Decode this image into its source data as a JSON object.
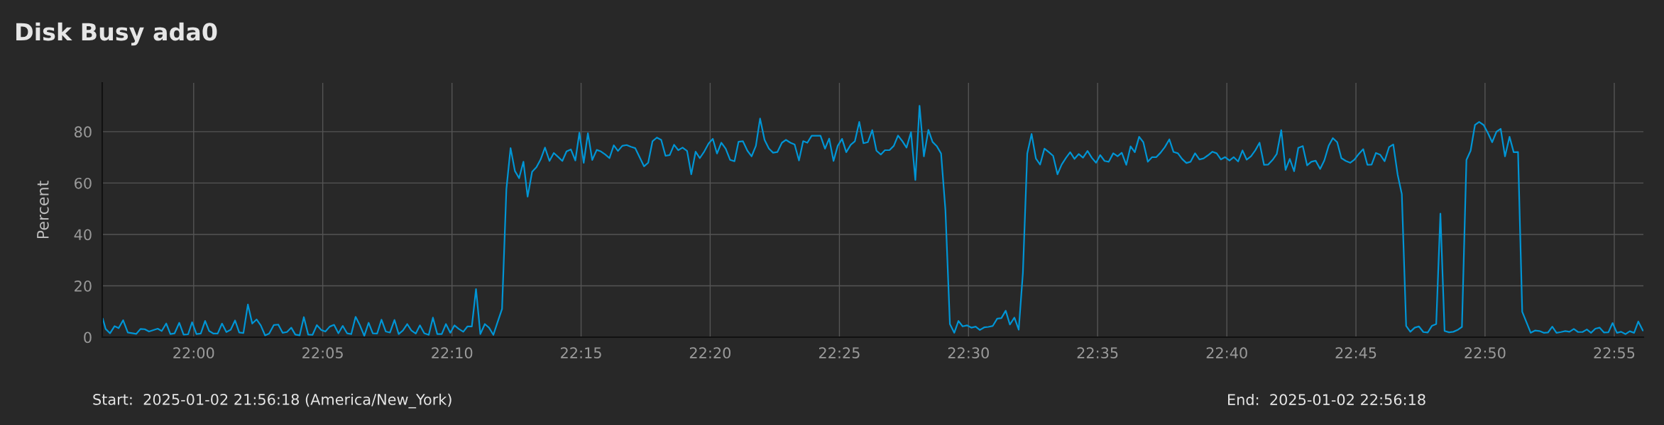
{
  "chart_data": {
    "type": "line",
    "title": "Disk Busy ada0",
    "ylabel": "Percent",
    "annotations": [
      "Start:  2025-01-02 21:56:18 (America/New_York)",
      "End:  2025-01-02 22:56:18"
    ],
    "xlim": [
      21.941,
      22.9355
    ],
    "ylim": [
      0,
      99
    ],
    "xticks": [
      {
        "value": 22.0,
        "label": "22:00"
      },
      {
        "value": 22.0833,
        "label": "22:05"
      },
      {
        "value": 22.1667,
        "label": "22:10"
      },
      {
        "value": 22.25,
        "label": "22:15"
      },
      {
        "value": 22.3333,
        "label": "22:20"
      },
      {
        "value": 22.4167,
        "label": "22:25"
      },
      {
        "value": 22.5,
        "label": "22:30"
      },
      {
        "value": 22.5833,
        "label": "22:35"
      },
      {
        "value": 22.6667,
        "label": "22:40"
      },
      {
        "value": 22.75,
        "label": "22:45"
      },
      {
        "value": 22.8333,
        "label": "22:50"
      },
      {
        "value": 22.9167,
        "label": "22:55"
      }
    ],
    "yticks": [
      0,
      20,
      40,
      60,
      80
    ],
    "grid": true,
    "legend": false,
    "marker": "none",
    "line_style": "solid",
    "series": [
      {
        "color": "#0095d5",
        "x": [
          21.9413,
          21.9432,
          21.946,
          21.949,
          21.9516,
          21.9545,
          21.9575,
          21.963,
          21.9657,
          21.9684,
          21.9712,
          21.9768,
          21.9794,
          21.9823,
          21.985,
          21.9877,
          21.9907,
          21.9935,
          21.9964,
          21.999,
          22.0018,
          22.0046,
          22.0074,
          22.01,
          22.0128,
          22.0155,
          22.0183,
          22.0211,
          22.0239,
          22.0267,
          22.0294,
          22.0321,
          22.035,
          22.0378,
          22.0406,
          22.0433,
          22.0461,
          22.0487,
          22.0517,
          22.0546,
          22.0574,
          22.0602,
          22.063,
          22.0656,
          22.0684,
          22.0711,
          22.0739,
          22.0767,
          22.0795,
          22.0823,
          22.085,
          22.0878,
          22.0906,
          22.0934,
          22.0962,
          22.099,
          22.1017,
          22.1045,
          22.1073,
          22.1101,
          22.1129,
          22.1156,
          22.1184,
          22.1212,
          22.124,
          22.1267,
          22.1296,
          22.1323,
          22.135,
          22.1378,
          22.1405,
          22.1433,
          22.146,
          22.1488,
          22.1517,
          22.1544,
          22.1572,
          22.1601,
          22.1628,
          22.1656,
          22.1683,
          22.1711,
          22.174,
          22.1767,
          22.1795,
          22.1822,
          22.185,
          22.1879,
          22.1906,
          22.1934,
          22.1961,
          22.199,
          22.2018,
          22.2045,
          22.2073,
          22.21,
          22.2128,
          22.2155,
          22.2184,
          22.2212,
          22.2239,
          22.2267,
          22.2296,
          22.2324,
          22.2351,
          22.2379,
          22.2406,
          22.2434,
          22.2463,
          22.2489,
          22.2517,
          22.2544,
          22.2572,
          22.2601,
          22.2628,
          22.2656,
          22.2683,
          22.2711,
          22.2738,
          22.2766,
          22.2794,
          22.2822,
          22.2849,
          22.2906,
          22.2933,
          22.2961,
          22.2989,
          22.3017,
          22.3045,
          22.3072,
          22.31,
          22.3127,
          22.3155,
          22.3184,
          22.3211,
          22.3239,
          22.3266,
          22.3295,
          22.3323,
          22.335,
          22.3377,
          22.3405,
          22.3433,
          22.3462,
          22.349,
          22.3516,
          22.3544,
          22.3573,
          22.36,
          22.3628,
          22.3655,
          22.3684,
          22.3712,
          22.3739,
          22.3767,
          22.3796,
          22.3822,
          22.3851,
          22.3878,
          22.3906,
          22.3933,
          22.396,
          22.3988,
          22.4045,
          22.4074,
          22.4101,
          22.4129,
          22.4156,
          22.4184,
          22.4211,
          22.424,
          22.4267,
          22.4295,
          22.4322,
          22.435,
          22.4379,
          22.4406,
          22.4434,
          22.4461,
          22.449,
          22.4518,
          22.4545,
          22.4572,
          22.46,
          22.4629,
          22.4657,
          22.4684,
          22.4712,
          22.4741,
          22.4768,
          22.4796,
          22.4823,
          22.4851,
          22.488,
          22.4908,
          22.4935,
          22.4962,
          22.499,
          22.5018,
          22.5046,
          22.5073,
          22.5101,
          22.5128,
          22.5157,
          22.5185,
          22.5212,
          22.524,
          22.5267,
          22.5296,
          22.5324,
          22.5351,
          22.5379,
          22.5407,
          22.5435,
          22.5462,
          22.549,
          22.5519,
          22.5546,
          22.5574,
          22.5601,
          22.5629,
          22.5656,
          22.5684,
          22.5711,
          22.5739,
          22.5768,
          22.5796,
          22.5823,
          22.585,
          22.5878,
          22.5905,
          22.5934,
          22.5962,
          22.5989,
          22.6018,
          22.6046,
          22.6073,
          22.6101,
          22.6128,
          22.6157,
          22.6185,
          22.6212,
          22.6239,
          22.6267,
          22.6296,
          22.6323,
          22.6351,
          22.6378,
          22.6406,
          22.6433,
          22.6462,
          22.649,
          22.6517,
          22.6545,
          22.6574,
          22.6601,
          22.6629,
          22.6656,
          22.6684,
          22.6711,
          22.674,
          22.6768,
          22.6795,
          22.6823,
          22.685,
          22.6878,
          22.6907,
          22.6934,
          22.6962,
          22.6989,
          22.7018,
          22.7046,
          22.7073,
          22.7101,
          22.7128,
          22.7157,
          22.7185,
          22.7212,
          22.724,
          22.7269,
          22.7296,
          22.7324,
          22.7351,
          22.7379,
          22.7406,
          22.7435,
          22.7463,
          22.749,
          22.7518,
          22.7547,
          22.7574,
          22.7601,
          22.7629,
          22.7657,
          22.7685,
          22.7714,
          22.7741,
          22.7769,
          22.7796,
          22.7824,
          22.7851,
          22.7879,
          22.7906,
          22.7935,
          22.7963,
          22.799,
          22.8018,
          22.8045,
          22.8072,
          22.8101,
          22.8129,
          22.8156,
          22.8184,
          22.8213,
          22.824,
          22.8268,
          22.8295,
          22.8324,
          22.8352,
          22.8379,
          22.8407,
          22.8434,
          22.8462,
          22.8491,
          22.8518,
          22.8546,
          22.8573,
          22.8628,
          22.8657,
          22.8684,
          22.8712,
          22.8739,
          22.8767,
          22.8794,
          22.8823,
          22.8851,
          22.8878,
          22.8906,
          22.8933,
          22.8962,
          22.899,
          22.9017,
          22.9045,
          22.9072,
          22.9101,
          22.9129,
          22.9156,
          22.9184,
          22.9211,
          22.924,
          22.9267,
          22.9295,
          22.9322,
          22.9351
        ],
        "values": [
          7.3,
          3.2,
          1.5,
          4.3,
          3.5,
          6.6,
          1.8,
          1.3,
          3.2,
          3.1,
          2.2,
          3.3,
          2.4,
          5.3,
          1.2,
          1.5,
          5.6,
          1.0,
          1.1,
          5.8,
          1.2,
          1.4,
          6.3,
          2.4,
          1.4,
          1.4,
          5.3,
          2.0,
          2.9,
          6.5,
          1.8,
          1.6,
          12.7,
          5.3,
          6.9,
          4.6,
          0.7,
          1.4,
          4.7,
          4.9,
          1.7,
          2.0,
          3.7,
          1.0,
          0.7,
          7.8,
          1.0,
          0.9,
          4.7,
          2.8,
          2.2,
          4.1,
          4.8,
          1.5,
          4.4,
          1.5,
          1.2,
          7.9,
          4.6,
          0.5,
          5.6,
          1.5,
          1.4,
          6.8,
          2.2,
          1.8,
          6.7,
          1.2,
          2.6,
          5.1,
          2.6,
          1.4,
          4.6,
          1.5,
          0.9,
          7.6,
          1.2,
          1.2,
          5.1,
          1.7,
          4.6,
          3.2,
          2.1,
          4.2,
          4.2,
          18.7,
          1.2,
          5.1,
          3.7,
          0.9,
          5.8,
          11.0,
          57.7,
          73.6,
          64.7,
          61.9,
          68.3,
          54.7,
          64.4,
          66.2,
          69.2,
          73.8,
          68.6,
          71.7,
          70.2,
          68.6,
          72.3,
          73.1,
          68.8,
          79.6,
          67.9,
          79.4,
          69.0,
          72.9,
          72.3,
          71.1,
          69.7,
          74.7,
          72.5,
          74.5,
          74.8,
          74.1,
          73.6,
          66.5,
          67.9,
          76.3,
          77.7,
          76.8,
          70.6,
          70.9,
          74.9,
          72.8,
          73.8,
          72.5,
          63.4,
          72.2,
          69.7,
          72.3,
          75.4,
          77.2,
          71.5,
          75.7,
          73.4,
          69.0,
          68.5,
          76.1,
          76.3,
          72.6,
          70.4,
          74.5,
          85.1,
          76.8,
          73.4,
          71.8,
          72.1,
          75.7,
          76.8,
          75.7,
          75.0,
          68.8,
          76.3,
          75.7,
          78.4,
          78.4,
          73.4,
          77.3,
          68.6,
          74.5,
          77.2,
          72.0,
          74.9,
          76.3,
          83.8,
          75.5,
          75.9,
          80.6,
          72.6,
          71.1,
          72.8,
          72.8,
          74.5,
          78.5,
          76.4,
          73.8,
          79.8,
          61.2,
          90.1,
          70.4,
          80.7,
          76.0,
          74.3,
          71.5,
          49.5,
          5.1,
          1.7,
          6.3,
          4.2,
          4.6,
          3.7,
          4.1,
          2.8,
          3.8,
          4.0,
          4.4,
          7.2,
          7.4,
          10.3,
          4.9,
          7.6,
          2.9,
          25.1,
          71.5,
          79.1,
          69.5,
          67.2,
          73.4,
          72.0,
          70.6,
          63.4,
          67.2,
          69.8,
          72.0,
          69.4,
          71.3,
          69.9,
          72.5,
          69.8,
          67.9,
          70.9,
          68.6,
          68.3,
          71.6,
          70.4,
          71.8,
          67.1,
          74.3,
          72.0,
          78.0,
          75.9,
          68.3,
          70.1,
          70.1,
          71.8,
          74.0,
          77.0,
          72.1,
          71.6,
          69.4,
          67.8,
          68.3,
          71.6,
          69.2,
          69.6,
          70.8,
          72.2,
          71.6,
          69.2,
          70.1,
          68.8,
          70.1,
          68.4,
          72.7,
          69.1,
          70.4,
          72.7,
          75.7,
          67.1,
          67.2,
          69.0,
          71.3,
          80.6,
          65.1,
          69.4,
          64.6,
          73.7,
          74.4,
          66.9,
          68.3,
          68.7,
          65.5,
          68.8,
          74.5,
          77.5,
          75.9,
          69.7,
          68.6,
          67.9,
          69.1,
          71.3,
          73.2,
          67.1,
          67.2,
          71.7,
          71.0,
          68.5,
          74.0,
          75.0,
          63.3,
          55.7,
          4.4,
          2.1,
          3.7,
          4.2,
          2.0,
          1.8,
          4.4,
          5.1,
          48.1,
          2.4,
          1.9,
          2.1,
          2.8,
          4.0,
          69.0,
          72.6,
          82.6,
          83.8,
          82.6,
          79.4,
          75.9,
          80.0,
          81.1,
          70.4,
          78.0,
          72.0,
          72.1,
          9.9,
          1.7,
          2.6,
          2.4,
          1.7,
          1.8,
          4.1,
          1.7,
          2.0,
          2.4,
          2.1,
          3.2,
          2.0,
          2.0,
          3.0,
          1.7,
          3.3,
          3.7,
          1.8,
          1.9,
          5.5,
          1.7,
          2.1,
          1.2,
          2.3,
          1.7,
          6.1,
          2.6
        ]
      }
    ]
  }
}
